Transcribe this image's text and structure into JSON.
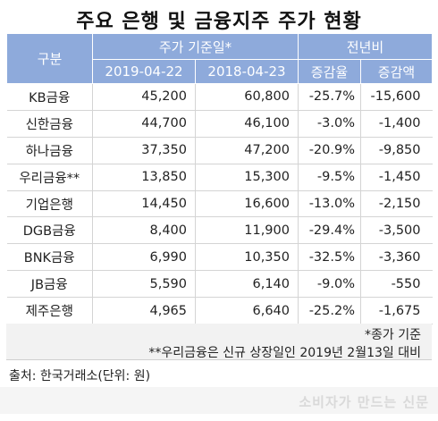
{
  "title": "주요 은행 및 금융지주 주가 현황",
  "table": {
    "header_group": {
      "category": "구분",
      "price_group": "주가 기준일*",
      "yoy_group": "전년비"
    },
    "header_cols": [
      "2019-04-22",
      "2018-04-23",
      "증감율",
      "증감액"
    ],
    "rows": [
      {
        "name": "KB금융",
        "p2019": "45,200",
        "p2018": "60,800",
        "rate": "-25.7%",
        "amount": "-15,600"
      },
      {
        "name": "신한금융",
        "p2019": "44,700",
        "p2018": "46,100",
        "rate": "-3.0%",
        "amount": "-1,400"
      },
      {
        "name": "하나금융",
        "p2019": "37,350",
        "p2018": "47,200",
        "rate": "-20.9%",
        "amount": "-9,850"
      },
      {
        "name": "우리금융**",
        "p2019": "13,850",
        "p2018": "15,300",
        "rate": "-9.5%",
        "amount": "-1,450"
      },
      {
        "name": "기업은행",
        "p2019": "14,450",
        "p2018": "16,600",
        "rate": "-13.0%",
        "amount": "-2,150"
      },
      {
        "name": "DGB금융",
        "p2019": "8,400",
        "p2018": "11,900",
        "rate": "-29.4%",
        "amount": "-3,500"
      },
      {
        "name": "BNK금융",
        "p2019": "6,990",
        "p2018": "10,350",
        "rate": "-32.5%",
        "amount": "-3,360"
      },
      {
        "name": "JB금융",
        "p2019": "5,590",
        "p2018": "6,140",
        "rate": "-9.0%",
        "amount": "-550"
      },
      {
        "name": "제주은행",
        "p2019": "4,965",
        "p2018": "6,640",
        "rate": "-25.2%",
        "amount": "-1,675"
      }
    ]
  },
  "notes": {
    "note1": "*종가 기준",
    "note2": "**우리금융은 신규 상장일인 2019년 2월13일 대비"
  },
  "source": "출처: 한국거래소(단위: 원)",
  "brand": "소비자가 만드는 신문",
  "colors": {
    "header_bg": "#8eaadb",
    "notes_bg": "#f2f2f2"
  }
}
